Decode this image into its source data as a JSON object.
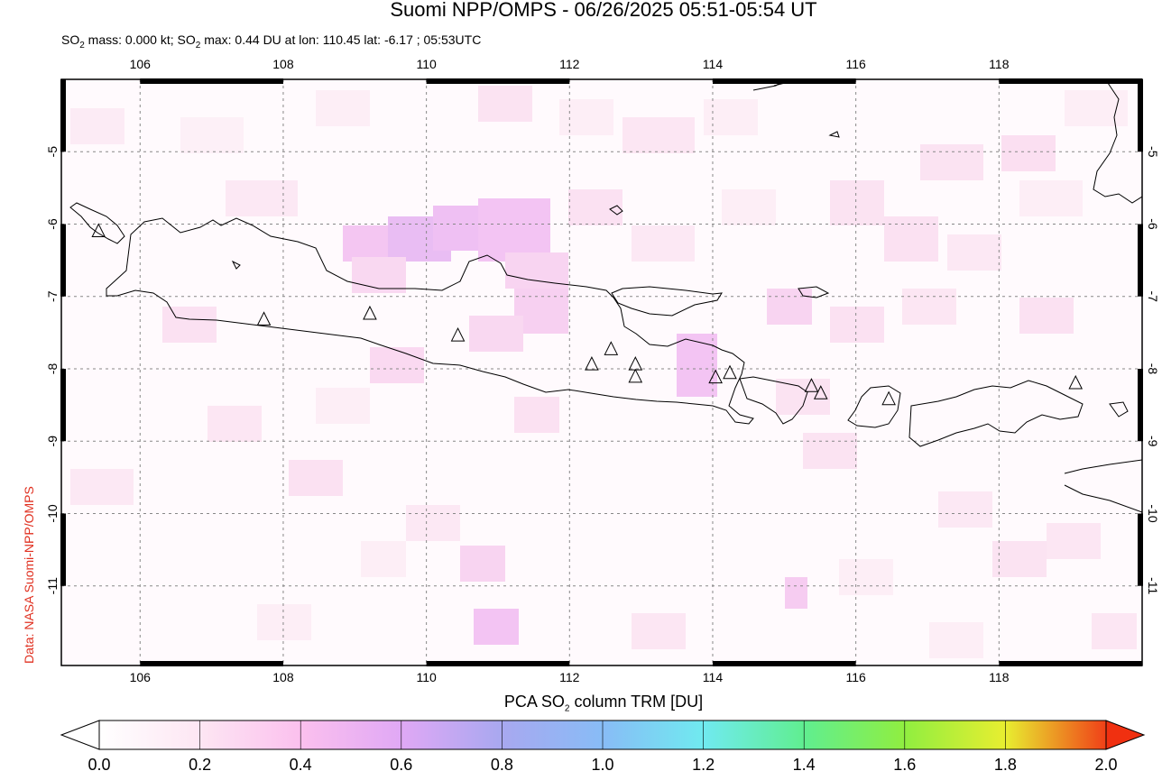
{
  "title": "Suomi NPP/OMPS - 06/26/2025 05:51-05:54 UT",
  "subtitle": {
    "so2_label": "SO",
    "so2_sub": "2",
    "mass_text": " mass: 0.000 kt; ",
    "so2_label2": "SO",
    "so2_sub2": "2",
    "max_text": " max: 0.44 DU at lon: 110.45 lat: -6.17 ; 05:53UTC"
  },
  "credit": "Data: NASA Suomi-NPP/OMPS",
  "map": {
    "lon_ticks": [
      "106",
      "108",
      "110",
      "112",
      "114",
      "116",
      "118"
    ],
    "lat_ticks": [
      "-5",
      "-6",
      "-7",
      "-8",
      "-9",
      "-10",
      "-11"
    ],
    "lon_values": [
      106,
      108,
      110,
      112,
      114,
      116,
      118
    ],
    "lat_values": [
      -5,
      -6,
      -7,
      -8,
      -9,
      -10,
      -11
    ],
    "lon_range": [
      104.9,
      120.0
    ],
    "lat_range": [
      -12.1,
      -4.0
    ],
    "grid": true,
    "volcanoes": [
      {
        "lon": 105.42,
        "lat": -6.1
      },
      {
        "lon": 107.73,
        "lat": -7.32
      },
      {
        "lon": 109.21,
        "lat": -7.24
      },
      {
        "lon": 110.44,
        "lat": -7.54
      },
      {
        "lon": 112.31,
        "lat": -7.94
      },
      {
        "lon": 112.58,
        "lat": -7.73
      },
      {
        "lon": 112.92,
        "lat": -7.94
      },
      {
        "lon": 112.92,
        "lat": -8.11
      },
      {
        "lon": 114.04,
        "lat": -8.12
      },
      {
        "lon": 114.24,
        "lat": -8.06
      },
      {
        "lon": 115.38,
        "lat": -8.24
      },
      {
        "lon": 115.51,
        "lat": -8.34
      },
      {
        "lon": 116.46,
        "lat": -8.42
      },
      {
        "lon": 119.07,
        "lat": -8.2
      }
    ]
  },
  "colorbar": {
    "title_pre": "PCA SO",
    "title_sub": "2",
    "title_post": " column TRM [DU]",
    "ticks": [
      "0.0",
      "0.2",
      "0.4",
      "0.6",
      "0.8",
      "1.0",
      "1.2",
      "1.4",
      "1.6",
      "1.8",
      "2.0"
    ],
    "colors": [
      "#ffffff",
      "#fde6f3",
      "#fbc0ee",
      "#e8a8f5",
      "#a8a8f0",
      "#88bcf6",
      "#70eaf0",
      "#60ee90",
      "#90ee40",
      "#e8ee30",
      "#f8a020",
      "#f03010"
    ]
  }
}
